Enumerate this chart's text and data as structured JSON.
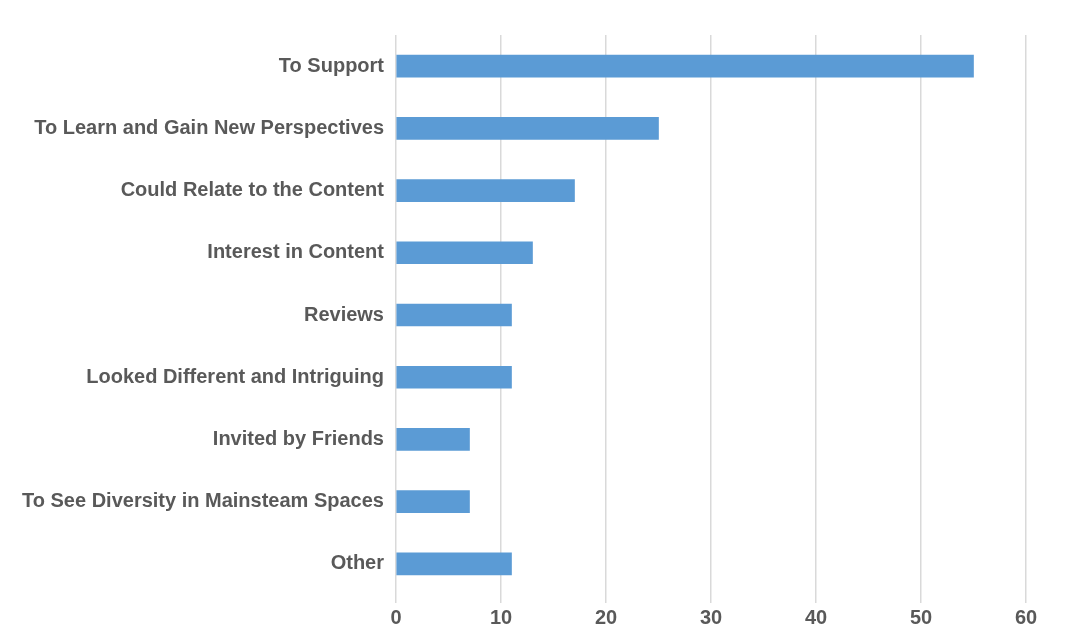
{
  "chart_data": {
    "type": "bar",
    "orientation": "horizontal",
    "categories": [
      "To Support",
      "To Learn and Gain New Perspectives",
      "Could Relate to the Content",
      "Interest in Content",
      "Reviews",
      "Looked Different and Intriguing",
      "Invited by Friends",
      "To See Diversity in Mainsteam Spaces",
      "Other"
    ],
    "values": [
      55,
      25,
      17,
      13,
      11,
      11,
      7,
      7,
      11
    ],
    "color": "#5b9bd5",
    "xlim": [
      0,
      60
    ],
    "xticks": [
      0,
      10,
      20,
      30,
      40,
      50,
      60
    ],
    "grid": "x",
    "legend": false
  }
}
